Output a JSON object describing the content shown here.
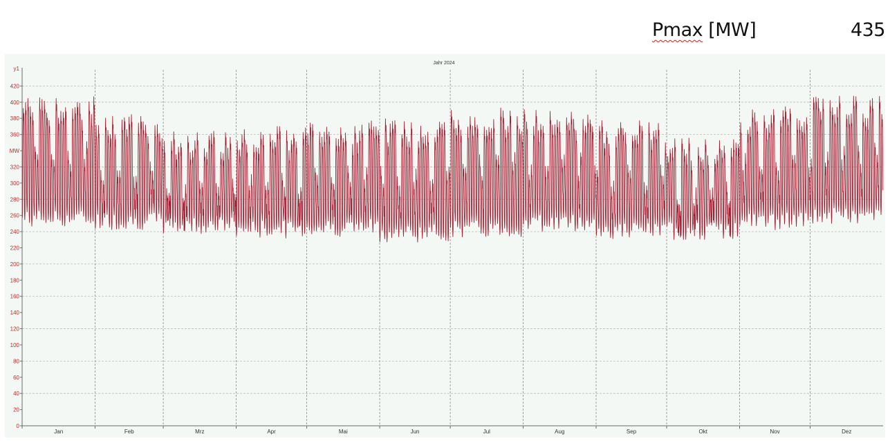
{
  "header": {
    "label_main": "Pmax",
    "label_unit": "[MW]",
    "value": "435"
  },
  "chart_data": {
    "type": "line",
    "title": "Jahr 2024",
    "xlabel": "",
    "ylabel": "MW",
    "y_axis_name": "y1",
    "ylim": [
      0,
      440
    ],
    "yticks": [
      0,
      20,
      40,
      60,
      80,
      100,
      120,
      140,
      160,
      180,
      200,
      220,
      240,
      260,
      280,
      300,
      320,
      340,
      360,
      380,
      400,
      420
    ],
    "x_categories": [
      "Jan",
      "Feb",
      "Mrz",
      "Apr",
      "Mai",
      "Jun",
      "Jul",
      "Aug",
      "Sep",
      "Okt",
      "Nov",
      "Dez"
    ],
    "grid": true,
    "color": "#a51c30",
    "series": [
      {
        "monthly_daily_range_MW": {
          "Jan": {
            "peak_max": 432,
            "trough_min": 233
          },
          "Feb": {
            "peak_max": 410,
            "trough_min": 230
          },
          "Mrz": {
            "peak_max": 390,
            "trough_min": 225
          },
          "Apr": {
            "peak_max": 395,
            "trough_min": 220
          },
          "Mai": {
            "peak_max": 402,
            "trough_min": 222
          },
          "Jun": {
            "peak_max": 405,
            "trough_min": 215
          },
          "Jul": {
            "peak_max": 418,
            "trough_min": 220
          },
          "Aug": {
            "peak_max": 418,
            "trough_min": 228
          },
          "Sep": {
            "peak_max": 403,
            "trough_min": 218
          },
          "Okt": {
            "peak_max": 382,
            "trough_min": 218
          },
          "Nov": {
            "peak_max": 420,
            "trough_min": 230
          },
          "Dez": {
            "peak_max": 433,
            "trough_min": 236
          }
        }
      }
    ]
  }
}
